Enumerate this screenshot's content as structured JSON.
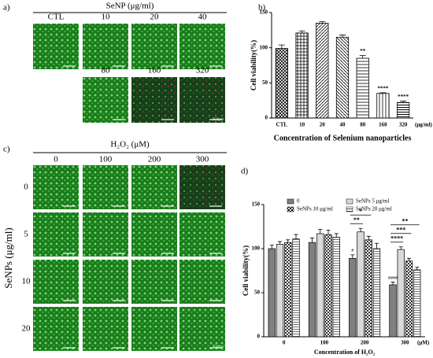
{
  "panel_labels": [
    "a)",
    "b)",
    "c)",
    "d)"
  ],
  "panel_a": {
    "title": "SeNP (μg/ml)",
    "labels": [
      "CTL",
      "10",
      "20",
      "40",
      "80",
      "160",
      "320"
    ],
    "scale_bar": "350μm"
  },
  "panel_c": {
    "title": "H₂O₂ (μM)",
    "column_labels": [
      "0",
      "100",
      "200",
      "300"
    ],
    "row_title": "SeNPs (μg/ml)",
    "row_labels": [
      "0",
      "5",
      "10",
      "20"
    ],
    "scale_bar": "350μm"
  },
  "chart_data": [
    {
      "type": "bar",
      "y_label": "Cell viability(%)",
      "x_label": "Concentration of Selenium nanoparticles",
      "x_unit": "(μg/ml)",
      "categories": [
        "CTL",
        "10",
        "20",
        "40",
        "80",
        "160",
        "320"
      ],
      "values": [
        99,
        121,
        135,
        115,
        85,
        35,
        22
      ],
      "errors": [
        5,
        3,
        2,
        3,
        4,
        1,
        2
      ],
      "color": "#ffffff",
      "ylim": [
        0,
        150
      ],
      "yticks": [
        0,
        50,
        100,
        150
      ],
      "annotations": [
        {
          "category": 4,
          "text": "**"
        },
        {
          "category": 5,
          "text": "****"
        },
        {
          "category": 6,
          "text": "****"
        }
      ]
    },
    {
      "type": "grouped_bar",
      "y_label": "Cell viability(%)",
      "x_label": "Concentration of H₂O₂",
      "x_unit": "(μM)",
      "categories": [
        "0",
        "100",
        "200",
        "300"
      ],
      "series": [
        {
          "name": "0",
          "color": "#808080",
          "values": [
            100,
            107,
            89,
            59
          ],
          "errors": [
            4,
            5,
            4,
            3
          ]
        },
        {
          "name": "SeNPs 5 μg/ml",
          "color": "#d9d9d9",
          "values": [
            105,
            117,
            119,
            99
          ],
          "errors": [
            3,
            5,
            4,
            3
          ]
        },
        {
          "name": "SeNPs 10 μg/ml",
          "color": "#ffffff",
          "values": [
            107,
            116,
            110,
            86
          ],
          "errors": [
            3,
            5,
            4,
            3
          ]
        },
        {
          "name": "SeNPs 20 μg/ml",
          "color": "#ffffff",
          "values": [
            111,
            113,
            100,
            76
          ],
          "errors": [
            5,
            4,
            6,
            3
          ]
        }
      ],
      "ylim": [
        0,
        150
      ],
      "yticks": [
        0,
        50,
        100,
        150
      ],
      "legend": "top",
      "marks": [
        {
          "series": 0,
          "category": 2,
          "text": "#"
        },
        {
          "series": 0,
          "category": 3,
          "text": "####"
        }
      ],
      "brackets": [
        {
          "category": 2,
          "from": 0,
          "to": 1,
          "text": "**"
        },
        {
          "category": 2,
          "from": 0,
          "to": 2,
          "text": "*"
        },
        {
          "category": 3,
          "from": 0,
          "to": 1,
          "text": "****"
        },
        {
          "category": 3,
          "from": 0,
          "to": 2,
          "text": "***"
        },
        {
          "category": 3,
          "from": 0,
          "to": 3,
          "text": "**"
        }
      ]
    }
  ]
}
